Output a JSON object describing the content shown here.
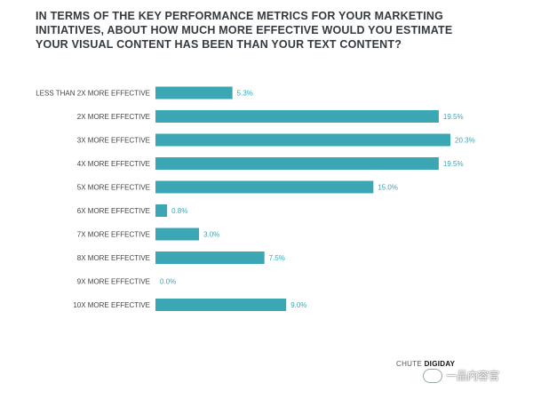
{
  "chart_data": {
    "type": "bar",
    "orientation": "horizontal",
    "title": "IN TERMS OF THE KEY PERFORMANCE METRICS FOR YOUR MARKETING INITIATIVES, ABOUT HOW MUCH MORE EFFECTIVE WOULD YOU ESTIMATE YOUR VISUAL CONTENT HAS BEEN THAN YOUR TEXT CONTENT?",
    "categories": [
      "LESS THAN 2X MORE EFFECTIVE",
      "2X MORE EFFECTIVE",
      "3X MORE EFFECTIVE",
      "4X MORE EFFECTIVE",
      "5X MORE EFFECTIVE",
      "6X MORE EFFECTIVE",
      "7X MORE EFFECTIVE",
      "8X MORE EFFECTIVE",
      "9X MORE EFFECTIVE",
      "10X MORE EFFECTIVE"
    ],
    "values": [
      5.3,
      19.5,
      20.3,
      19.5,
      15.0,
      0.8,
      3.0,
      7.5,
      0.0,
      9.0
    ],
    "value_labels": [
      "5.3%",
      "19.5%",
      "20.3%",
      "19.5%",
      "15.0%",
      "0.8%",
      "3.0%",
      "7.5%",
      "0.0%",
      "9.0%"
    ],
    "xlabel": "",
    "ylabel": "",
    "xlim": [
      0,
      20.3
    ],
    "grid": false,
    "bar_color": "#3ba7b5"
  },
  "footer": {
    "source_left": "CHUTE",
    "source_right": "DIGIDAY"
  },
  "watermark": {
    "text": "一品内容官"
  }
}
